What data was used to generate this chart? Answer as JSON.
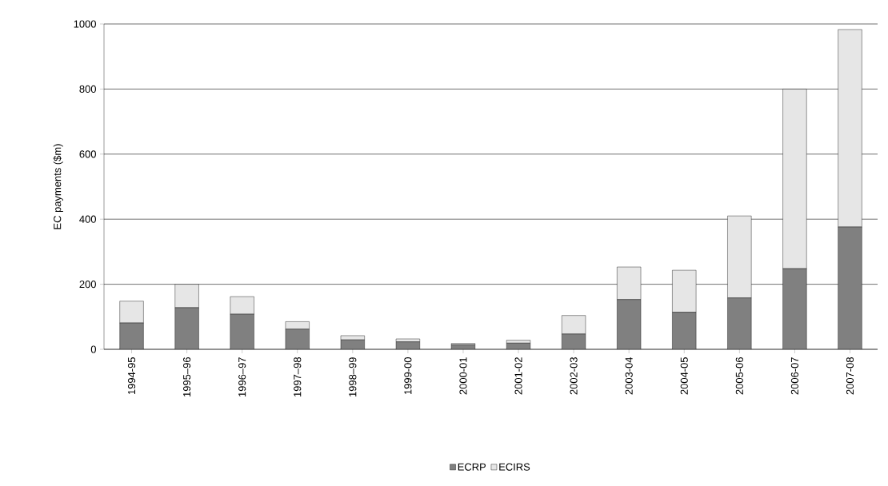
{
  "chart_data": {
    "type": "bar",
    "stacked": true,
    "ylabel": "EC payments ($m)",
    "categories": [
      "1994-95",
      "1995–96",
      "1996–97",
      "1997–98",
      "1998–99",
      "1999-00",
      "2000-01",
      "2001-02",
      "2002-03",
      "2003-04",
      "2004-05",
      "2005-06",
      "2006-07",
      "2007-08"
    ],
    "series": [
      {
        "name": "ECRP",
        "color": "#808080",
        "values": [
          81,
          128,
          108,
          62,
          29,
          23,
          14,
          19,
          47,
          153,
          114,
          158,
          248,
          376
        ]
      },
      {
        "name": "ECIRS",
        "color": "#e6e6e6",
        "values": [
          67,
          72,
          54,
          23,
          13,
          9,
          4,
          9,
          57,
          100,
          129,
          252,
          552,
          607
        ]
      }
    ],
    "ylim": [
      0,
      1000
    ],
    "yticks": [
      0,
      200,
      400,
      600,
      800,
      1000
    ],
    "grid": "y",
    "legend": "bottom"
  }
}
